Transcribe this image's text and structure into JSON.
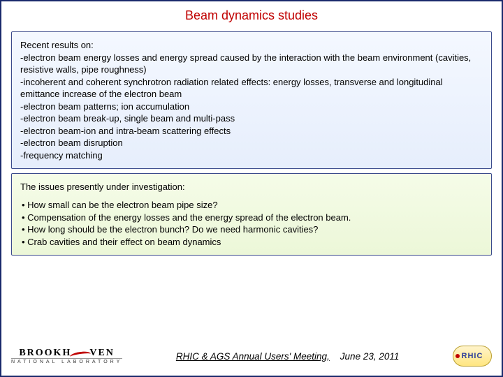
{
  "title": "Beam dynamics studies",
  "recent": {
    "heading": "Recent results on:",
    "items": [
      "-electron beam energy losses and energy spread caused by the interaction with the beam environment (cavities, resistive walls, pipe roughness)",
      "-incoherent and coherent synchrotron radiation related effects: energy losses, transverse and longitudinal emittance increase of the electron beam",
      "-electron beam patterns; ion accumulation",
      "-electron beam break-up, single beam and multi-pass",
      "-electron beam-ion and intra-beam scattering effects",
      "-electron beam disruption",
      "-frequency matching"
    ]
  },
  "issues": {
    "heading": "The issues presently under investigation:",
    "bullets": [
      "• How small can be the electron beam pipe size?",
      "• Compensation of the energy losses and the energy spread of the electron beam.",
      "• How long should be the electron bunch? Do we need harmonic cavities?",
      "• Crab cavities and their effect on beam dynamics"
    ]
  },
  "footer": {
    "bnl_main_left": "BROOKH",
    "bnl_main_right": "VEN",
    "bnl_sub": "NATIONAL LABORATORY",
    "meeting": "RHIC & AGS Annual Users' Meeting,",
    "date": "June 23, 2011",
    "rhic": "RHIC"
  },
  "colors": {
    "title": "#c00000",
    "frame": "#1a2a6c",
    "box_border": "#3a4a8c",
    "box_blue_top": "#f4f8ff",
    "box_blue_bottom": "#e6eefc",
    "box_green_top": "#f5fce8",
    "box_green_bottom": "#ecf7d8",
    "rhic_bg_top": "#fff4cc",
    "rhic_bg_bottom": "#ffe680",
    "rhic_text": "#2a3a9a"
  }
}
